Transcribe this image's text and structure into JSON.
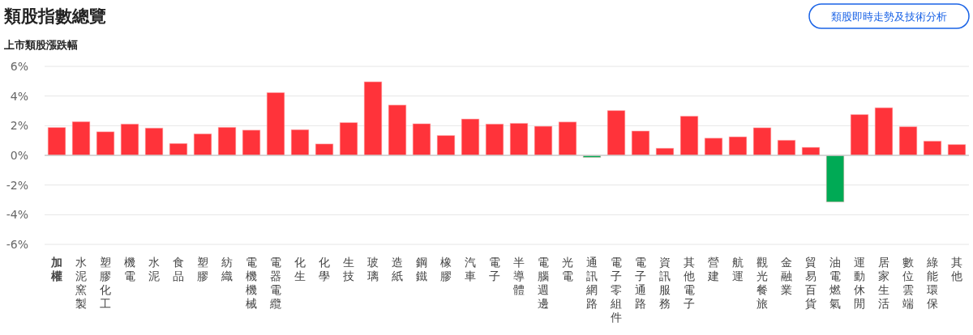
{
  "chart_data": {
    "type": "bar",
    "title": "類股指數總覽",
    "subtitle": "上市類股漲跌幅",
    "annotations": [
      "類股即時走勢及技術分析"
    ],
    "categories": [
      "加權",
      "水泥窯製",
      "塑膠化工",
      "機電",
      "水泥",
      "食品",
      "塑膠",
      "紡織",
      "電機機械",
      "電器電纜",
      "化生",
      "化學",
      "生技",
      "玻璃",
      "造紙",
      "鋼鐵",
      "橡膠",
      "汽車",
      "電子",
      "半導體",
      "電腦週邊",
      "光電",
      "通訊網路",
      "電子零組件",
      "電子通路",
      "資訊服務",
      "其他電子",
      "營建",
      "航運",
      "觀光餐旅",
      "金融業",
      "貿易百貨",
      "油電燃氣",
      "運動休閒",
      "居家生活",
      "數位雲端",
      "綠能環保",
      "其他"
    ],
    "values": [
      1.88,
      2.27,
      1.59,
      2.11,
      1.84,
      0.8,
      1.45,
      1.89,
      1.7,
      4.23,
      1.73,
      0.77,
      2.21,
      4.96,
      3.39,
      2.13,
      1.34,
      2.45,
      2.11,
      2.16,
      1.96,
      2.25,
      -0.14,
      3.02,
      1.64,
      0.48,
      2.64,
      1.16,
      1.25,
      1.86,
      1.02,
      0.54,
      -3.14,
      2.75,
      3.21,
      1.93,
      0.96,
      0.73
    ],
    "colors": [
      "#ff333a",
      "#ff333a",
      "#ff333a",
      "#ff333a",
      "#ff333a",
      "#ff333a",
      "#ff333a",
      "#ff333a",
      "#ff333a",
      "#ff333a",
      "#ff333a",
      "#ff333a",
      "#ff333a",
      "#ff333a",
      "#ff333a",
      "#ff333a",
      "#ff333a",
      "#ff333a",
      "#ff333a",
      "#ff333a",
      "#ff333a",
      "#ff333a",
      "#00aa55",
      "#ff333a",
      "#ff333a",
      "#ff333a",
      "#ff333a",
      "#ff333a",
      "#ff333a",
      "#ff333a",
      "#ff333a",
      "#ff333a",
      "#00aa55",
      "#ff333a",
      "#ff333a",
      "#ff333a",
      "#ff333a",
      "#ff333a"
    ],
    "ylim": [
      -6,
      6
    ],
    "yticks": [
      {
        "value": 6,
        "label": "6%"
      },
      {
        "value": 4,
        "label": "4%"
      },
      {
        "value": 2,
        "label": "2%"
      },
      {
        "value": 0,
        "label": "0%"
      },
      {
        "value": -2,
        "label": "-2%"
      },
      {
        "value": -4,
        "label": "-4%"
      },
      {
        "value": -6,
        "label": "-6%"
      }
    ],
    "grid": "y"
  }
}
